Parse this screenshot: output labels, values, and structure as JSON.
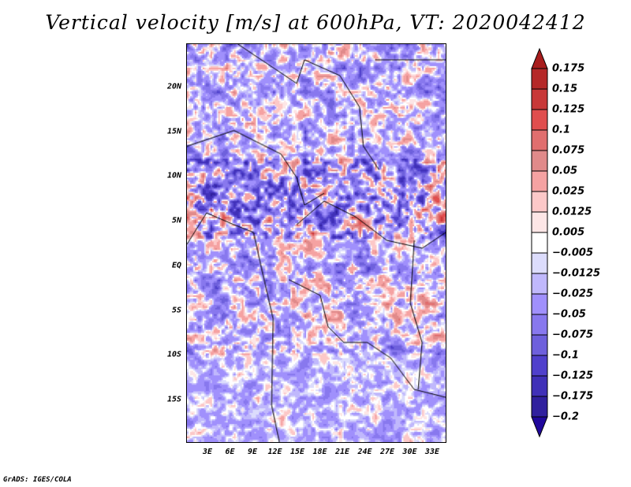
{
  "title": "Vertical velocity [m/s] at 600hPa, VT: 2020042412",
  "credit": "GrADS: IGES/COLA",
  "map": {
    "lon_range": [
      0.15,
      34.9
    ],
    "lat_range": [
      -19.85,
      24.85
    ],
    "lat_labels": [
      {
        "v": 20,
        "t": "20N"
      },
      {
        "v": 15,
        "t": "15N"
      },
      {
        "v": 10,
        "t": "10N"
      },
      {
        "v": 5,
        "t": "5N"
      },
      {
        "v": 0,
        "t": "EQ"
      },
      {
        "v": -5,
        "t": "5S"
      },
      {
        "v": -10,
        "t": "10S"
      },
      {
        "v": -15,
        "t": "15S"
      }
    ],
    "lon_labels": [
      {
        "v": 3,
        "t": "3E"
      },
      {
        "v": 6,
        "t": "6E"
      },
      {
        "v": 9,
        "t": "9E"
      },
      {
        "v": 12,
        "t": "12E"
      },
      {
        "v": 15,
        "t": "15E"
      },
      {
        "v": 18,
        "t": "18E"
      },
      {
        "v": 21,
        "t": "21E"
      },
      {
        "v": 24,
        "t": "24E"
      },
      {
        "v": 27,
        "t": "27E"
      },
      {
        "v": 30,
        "t": "30E"
      },
      {
        "v": 33,
        "t": "33E"
      }
    ]
  },
  "colorbar": {
    "labels": [
      "0.175",
      "0.15",
      "0.125",
      "0.1",
      "0.075",
      "0.05",
      "0.025",
      "0.0125",
      "0.005",
      "-0.005",
      "-0.0125",
      "-0.025",
      "-0.05",
      "-0.075",
      "-0.1",
      "-0.125",
      "-0.175",
      "-0.2"
    ],
    "top_arrow_color": "#a81d1d",
    "bottom_arrow_color": "#20089c",
    "colors": [
      "#b52828",
      "#c83838",
      "#e04e4e",
      "#e06e6e",
      "#e08a8a",
      "#f5a2a2",
      "#fcc8c8",
      "#fde6e6",
      "#ffffff",
      "#dcdcfc",
      "#c0b8fc",
      "#a090fc",
      "#8878ee",
      "#6e60dc",
      "#5040cc",
      "#4030b8",
      "#30209e"
    ]
  }
}
